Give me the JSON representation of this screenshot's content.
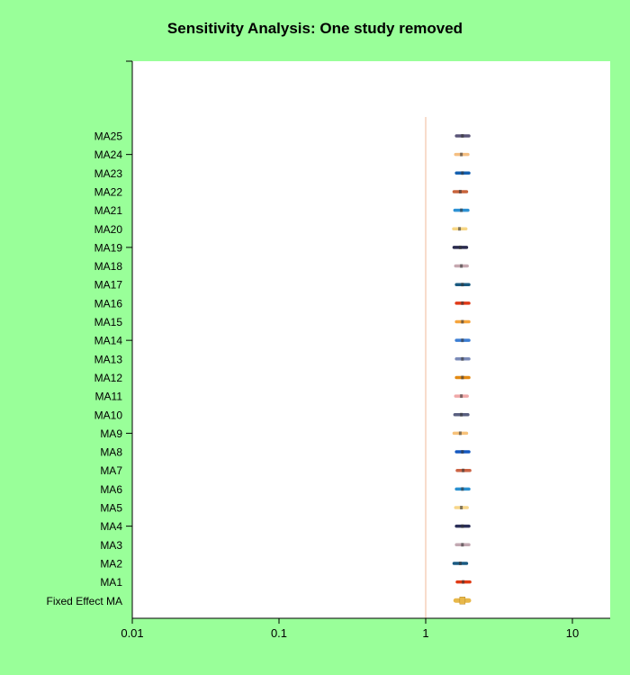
{
  "chart_data": {
    "type": "forest",
    "title": "Sensitivity Analysis: One study removed",
    "xscale": "log",
    "xlim": [
      0.01,
      20
    ],
    "xticks": [
      {
        "value": 0.01,
        "label": "0.01"
      },
      {
        "value": 0.1,
        "label": "0.1"
      },
      {
        "value": 1,
        "label": "1"
      },
      {
        "value": 10,
        "label": "10"
      }
    ],
    "reference_line": 1,
    "rows": [
      {
        "label": "MA25",
        "estimate": 1.78,
        "lower": 1.62,
        "upper": 1.97,
        "color": "#5a5578"
      },
      {
        "label": "MA24",
        "estimate": 1.75,
        "lower": 1.6,
        "upper": 1.94,
        "color": "#f5bf82"
      },
      {
        "label": "MA23",
        "estimate": 1.78,
        "lower": 1.62,
        "upper": 1.97,
        "color": "#1560b0"
      },
      {
        "label": "MA22",
        "estimate": 1.72,
        "lower": 1.56,
        "upper": 1.9,
        "color": "#c8643c"
      },
      {
        "label": "MA21",
        "estimate": 1.75,
        "lower": 1.58,
        "upper": 1.94,
        "color": "#2e92d4"
      },
      {
        "label": "MA20",
        "estimate": 1.7,
        "lower": 1.55,
        "upper": 1.88,
        "color": "#f7d684"
      },
      {
        "label": "MA19",
        "estimate": 1.72,
        "lower": 1.56,
        "upper": 1.9,
        "color": "#2a2b4e"
      },
      {
        "label": "MA18",
        "estimate": 1.75,
        "lower": 1.6,
        "upper": 1.92,
        "color": "#c6a8b0"
      },
      {
        "label": "MA17",
        "estimate": 1.78,
        "lower": 1.62,
        "upper": 1.97,
        "color": "#1a5a80"
      },
      {
        "label": "MA16",
        "estimate": 1.78,
        "lower": 1.62,
        "upper": 1.97,
        "color": "#e03a18"
      },
      {
        "label": "MA15",
        "estimate": 1.78,
        "lower": 1.62,
        "upper": 1.97,
        "color": "#f5a43c"
      },
      {
        "label": "MA14",
        "estimate": 1.78,
        "lower": 1.62,
        "upper": 1.97,
        "color": "#3c7ed4"
      },
      {
        "label": "MA13",
        "estimate": 1.78,
        "lower": 1.62,
        "upper": 1.97,
        "color": "#7a8ab8"
      },
      {
        "label": "MA12",
        "estimate": 1.78,
        "lower": 1.62,
        "upper": 1.97,
        "color": "#e38a14"
      },
      {
        "label": "MA11",
        "estimate": 1.75,
        "lower": 1.6,
        "upper": 1.92,
        "color": "#f0a8a8"
      },
      {
        "label": "MA10",
        "estimate": 1.75,
        "lower": 1.58,
        "upper": 1.94,
        "color": "#5a6080"
      },
      {
        "label": "MA9",
        "estimate": 1.72,
        "lower": 1.56,
        "upper": 1.9,
        "color": "#f7c27a"
      },
      {
        "label": "MA8",
        "estimate": 1.78,
        "lower": 1.62,
        "upper": 1.97,
        "color": "#1558c0"
      },
      {
        "label": "MA7",
        "estimate": 1.8,
        "lower": 1.64,
        "upper": 2.0,
        "color": "#cc6445"
      },
      {
        "label": "MA6",
        "estimate": 1.78,
        "lower": 1.62,
        "upper": 1.97,
        "color": "#2a90d0"
      },
      {
        "label": "MA5",
        "estimate": 1.75,
        "lower": 1.6,
        "upper": 1.92,
        "color": "#f7d68a"
      },
      {
        "label": "MA4",
        "estimate": 1.78,
        "lower": 1.62,
        "upper": 1.97,
        "color": "#2a2e58"
      },
      {
        "label": "MA3",
        "estimate": 1.78,
        "lower": 1.62,
        "upper": 1.97,
        "color": "#c2a8b2"
      },
      {
        "label": "MA2",
        "estimate": 1.72,
        "lower": 1.56,
        "upper": 1.9,
        "color": "#1a5a82"
      },
      {
        "label": "MA1",
        "estimate": 1.8,
        "lower": 1.64,
        "upper": 2.0,
        "color": "#e03a14"
      },
      {
        "label": "Fixed Effect MA",
        "estimate": 1.78,
        "lower": 1.6,
        "upper": 1.97,
        "color": "#e8b84a",
        "summary": true
      }
    ]
  }
}
